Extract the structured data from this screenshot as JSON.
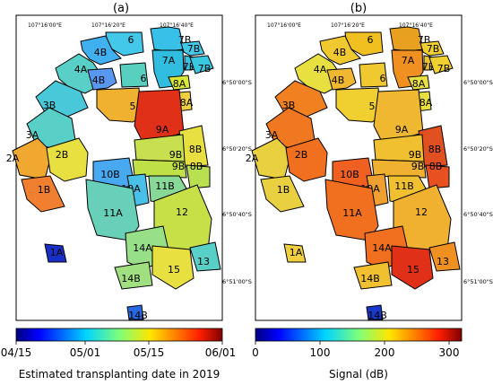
{
  "panels": [
    {
      "id": "a",
      "label": "(a)",
      "lon_labels": [
        "107°16'00\"E",
        "107°16'20\"E",
        "107°16'40\"E"
      ],
      "plots": [
        {
          "name": "6",
          "color": "#44c8ea"
        },
        {
          "name": "7B",
          "color": "#38c0e8"
        },
        {
          "name": "7B",
          "color": "#44c8ea"
        },
        {
          "name": "4B",
          "color": "#40b0f0"
        },
        {
          "name": "7A",
          "color": "#30bde0"
        },
        {
          "name": "7B",
          "color": "#3ac2e4"
        },
        {
          "name": "7B",
          "color": "#38c8e0"
        },
        {
          "name": "4A",
          "color": "#58d0c8"
        },
        {
          "name": "4B",
          "color": "#5898f0"
        },
        {
          "name": "6",
          "color": "#58d0c0"
        },
        {
          "name": "8A",
          "color": "#d8e838"
        },
        {
          "name": "3B",
          "color": "#48c8d8"
        },
        {
          "name": "5",
          "color": "#f0b030"
        },
        {
          "name": "8A",
          "color": "#f0d040"
        },
        {
          "name": "9A",
          "color": "#e03018"
        },
        {
          "name": "3A",
          "color": "#58d0c8"
        },
        {
          "name": "8B",
          "color": "#e8e040"
        },
        {
          "name": "9B",
          "color": "#c8e050"
        },
        {
          "name": "2A",
          "color": "#f0a830"
        },
        {
          "name": "2B",
          "color": "#e8e040"
        },
        {
          "name": "9B",
          "color": "#c0e048"
        },
        {
          "name": "8B",
          "color": "#b8e050"
        },
        {
          "name": "10B",
          "color": "#48a8f0"
        },
        {
          "name": "1B",
          "color": "#f08030"
        },
        {
          "name": "10A",
          "color": "#48c0e8"
        },
        {
          "name": "11B",
          "color": "#88d898"
        },
        {
          "name": "11A",
          "color": "#68d0b8"
        },
        {
          "name": "12",
          "color": "#c8e048"
        },
        {
          "name": "1A",
          "color": "#1830c8"
        },
        {
          "name": "14A",
          "color": "#98e088"
        },
        {
          "name": "13",
          "color": "#58d0c8"
        },
        {
          "name": "15",
          "color": "#e8e040"
        },
        {
          "name": "14B",
          "color": "#a0e080"
        },
        {
          "name": "14B",
          "color": "#2868e0"
        }
      ]
    },
    {
      "id": "b",
      "label": "(b)",
      "lon_labels": [
        "107°16'00\"E",
        "107°16'20\"E",
        "107°16'40\"E"
      ],
      "plots": [
        {
          "name": "6",
          "color": "#f0c020"
        },
        {
          "name": "7B",
          "color": "#e8a020"
        },
        {
          "name": "7B",
          "color": "#f0d030"
        },
        {
          "name": "4B",
          "color": "#f0c830"
        },
        {
          "name": "7A",
          "color": "#f09020"
        },
        {
          "name": "7B",
          "color": "#e8c030"
        },
        {
          "name": "7B",
          "color": "#f0d030"
        },
        {
          "name": "4A",
          "color": "#e8e040"
        },
        {
          "name": "4B",
          "color": "#f0b830"
        },
        {
          "name": "6",
          "color": "#f0c830"
        },
        {
          "name": "8A",
          "color": "#e8e040"
        },
        {
          "name": "3B",
          "color": "#f08020"
        },
        {
          "name": "5",
          "color": "#f0d030"
        },
        {
          "name": "8A",
          "color": "#e8e040"
        },
        {
          "name": "9A",
          "color": "#f0b830"
        },
        {
          "name": "3A",
          "color": "#f07820"
        },
        {
          "name": "8B",
          "color": "#e05020"
        },
        {
          "name": "9B",
          "color": "#f0c030"
        },
        {
          "name": "2A",
          "color": "#e8d040"
        },
        {
          "name": "2B",
          "color": "#f07020"
        },
        {
          "name": "9B",
          "color": "#f0b030"
        },
        {
          "name": "8B",
          "color": "#e85020"
        },
        {
          "name": "10B",
          "color": "#f06020"
        },
        {
          "name": "1B",
          "color": "#e8d040"
        },
        {
          "name": "10A",
          "color": "#f0a030"
        },
        {
          "name": "11B",
          "color": "#f0c030"
        },
        {
          "name": "11A",
          "color": "#f07020"
        },
        {
          "name": "12",
          "color": "#f0b030"
        },
        {
          "name": "1A",
          "color": "#f0d040"
        },
        {
          "name": "14A",
          "color": "#f07020"
        },
        {
          "name": "13",
          "color": "#f09020"
        },
        {
          "name": "15",
          "color": "#e03018"
        },
        {
          "name": "14B",
          "color": "#f0c030"
        },
        {
          "name": "14B",
          "color": "#1838c8"
        }
      ]
    }
  ],
  "lat_labels": [
    "6°50'00\"S",
    "6°50'20\"S",
    "6°50'40\"S",
    "6°51'00\"S"
  ],
  "colorbars": [
    {
      "id": "a",
      "ticks": [
        "04/15",
        "05/01",
        "05/15",
        "06/01"
      ],
      "title": "Estimated transplanting date in 2019"
    },
    {
      "id": "b",
      "ticks": [
        "0",
        "100",
        "200",
        "300"
      ],
      "title": "Signal (dB)"
    }
  ]
}
